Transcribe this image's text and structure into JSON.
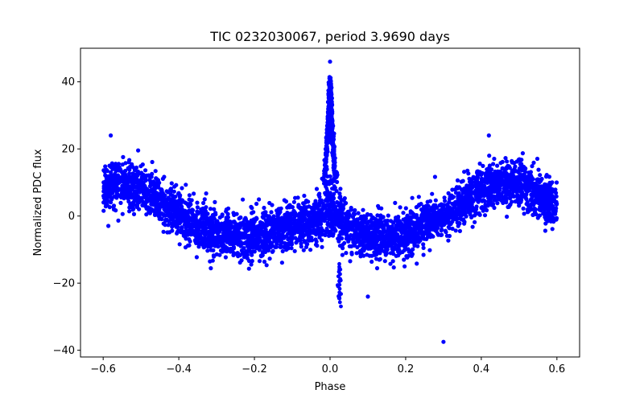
{
  "chart_data": {
    "type": "scatter",
    "title": "TIC 0232030067, period 3.9690 days",
    "xlabel": "Phase",
    "ylabel": "Normalized PDC flux",
    "xlim": [
      -0.66,
      0.66
    ],
    "ylim": [
      -42,
      50
    ],
    "xticks": [
      -0.6,
      -0.4,
      -0.2,
      0.0,
      0.2,
      0.4,
      0.6
    ],
    "xtick_labels": [
      "−0.6",
      "−0.4",
      "−0.2",
      "0.0",
      "0.2",
      "0.4",
      "0.6"
    ],
    "yticks": [
      -40,
      -20,
      0,
      20,
      40
    ],
    "ytick_labels": [
      "−40",
      "−20",
      "0",
      "20",
      "40"
    ],
    "grid": false,
    "marker_color": "#0000ff",
    "series": [
      {
        "name": "",
        "envelope": [
          {
            "x": -0.6,
            "y": 8,
            "spread": 6
          },
          {
            "x": -0.55,
            "y": 10,
            "spread": 6
          },
          {
            "x": -0.5,
            "y": 8,
            "spread": 6
          },
          {
            "x": -0.45,
            "y": 5,
            "spread": 6
          },
          {
            "x": -0.4,
            "y": 0,
            "spread": 6
          },
          {
            "x": -0.35,
            "y": -3,
            "spread": 6
          },
          {
            "x": -0.3,
            "y": -5,
            "spread": 6
          },
          {
            "x": -0.25,
            "y": -6,
            "spread": 6
          },
          {
            "x": -0.2,
            "y": -6,
            "spread": 6
          },
          {
            "x": -0.15,
            "y": -4,
            "spread": 6
          },
          {
            "x": -0.1,
            "y": -3,
            "spread": 6
          },
          {
            "x": -0.05,
            "y": -2,
            "spread": 6
          },
          {
            "x": -0.02,
            "y": 0,
            "spread": 6
          },
          {
            "x": 0.02,
            "y": 0,
            "spread": 6
          },
          {
            "x": 0.05,
            "y": -4,
            "spread": 6
          },
          {
            "x": 0.1,
            "y": -6,
            "spread": 6
          },
          {
            "x": 0.15,
            "y": -6,
            "spread": 6
          },
          {
            "x": 0.2,
            "y": -5,
            "spread": 6
          },
          {
            "x": 0.25,
            "y": -2,
            "spread": 6
          },
          {
            "x": 0.3,
            "y": 0,
            "spread": 6
          },
          {
            "x": 0.35,
            "y": 4,
            "spread": 6
          },
          {
            "x": 0.4,
            "y": 8,
            "spread": 6
          },
          {
            "x": 0.45,
            "y": 10,
            "spread": 6
          },
          {
            "x": 0.5,
            "y": 10,
            "spread": 6
          },
          {
            "x": 0.55,
            "y": 6,
            "spread": 6
          },
          {
            "x": 0.6,
            "y": 3,
            "spread": 6
          }
        ],
        "peak": {
          "x": 0.0,
          "y_max": 46,
          "y_base": 10,
          "width": 0.02
        },
        "dip": {
          "x": 0.025,
          "y_min": -27
        },
        "outliers": [
          {
            "x": 0.3,
            "y": -37.5
          },
          {
            "x": 0.1,
            "y": -24
          },
          {
            "x": -0.58,
            "y": 24
          },
          {
            "x": 0.42,
            "y": 24
          },
          {
            "x": 0.0,
            "y": 46
          }
        ]
      }
    ]
  }
}
